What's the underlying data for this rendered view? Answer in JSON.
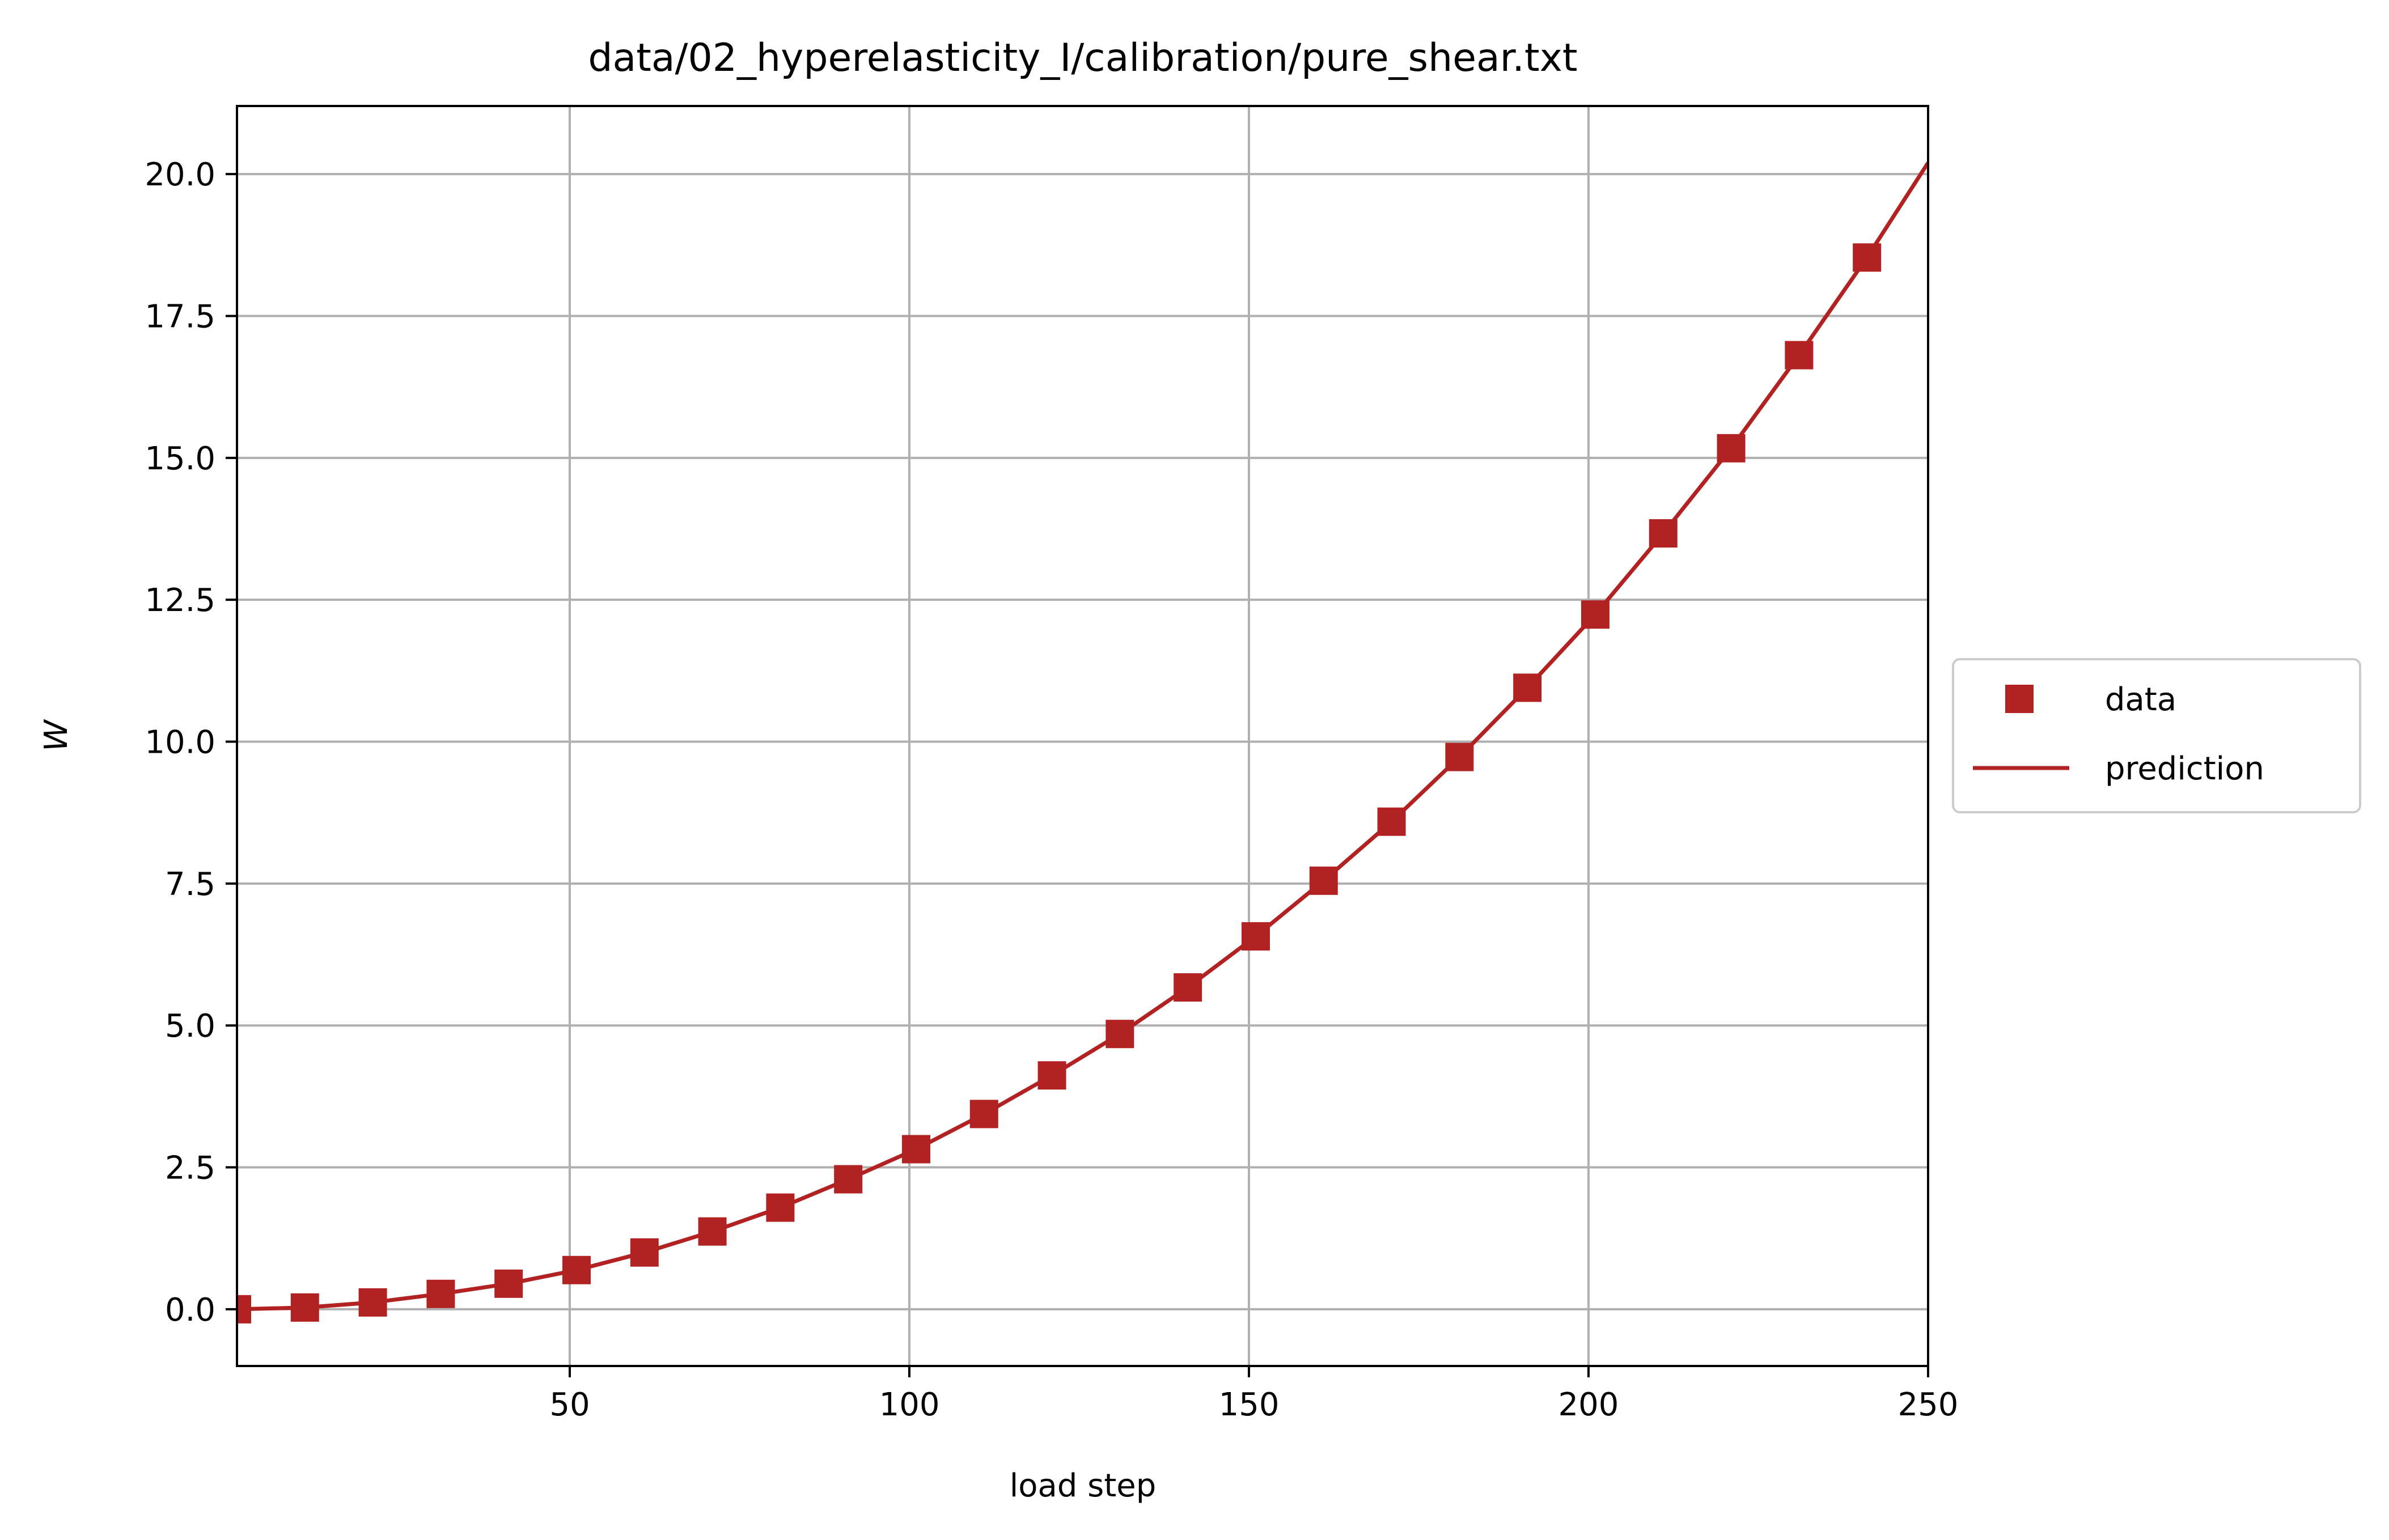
{
  "chart_data": {
    "type": "line",
    "title": "data/02_hyperelasticity_I/calibration/pure_shear.txt",
    "xlabel": "load step",
    "ylabel": "W",
    "xlim": [
      1,
      250
    ],
    "ylim": [
      -1.0,
      21.2
    ],
    "xticks": [
      50,
      100,
      150,
      200,
      250
    ],
    "xtick_labels": [
      "50",
      "100",
      "150",
      "200",
      "250"
    ],
    "yticks": [
      0.0,
      2.5,
      5.0,
      7.5,
      10.0,
      12.5,
      15.0,
      17.5,
      20.0
    ],
    "ytick_labels": [
      "0.0",
      "2.5",
      "5.0",
      "7.5",
      "10.0",
      "12.5",
      "15.0",
      "17.5",
      "20.0"
    ],
    "grid": true,
    "legend_placement": "center-right-outside",
    "series": [
      {
        "name": "data",
        "style": "square-markers",
        "color": "#b22222",
        "x": [
          1,
          11,
          21,
          31,
          41,
          51,
          61,
          71,
          81,
          91,
          101,
          111,
          121,
          131,
          141,
          151,
          161,
          171,
          181,
          191,
          201,
          211,
          221,
          231,
          241
        ],
        "y": [
          0.0,
          0.03,
          0.12,
          0.27,
          0.45,
          0.69,
          1.0,
          1.37,
          1.79,
          2.29,
          2.82,
          3.44,
          4.12,
          4.85,
          5.67,
          6.57,
          7.55,
          8.59,
          9.73,
          10.95,
          12.24,
          13.67,
          15.17,
          16.81,
          18.53
        ]
      },
      {
        "name": "prediction",
        "style": "line",
        "color": "#b22222",
        "x": [
          1,
          11,
          21,
          31,
          41,
          51,
          61,
          71,
          81,
          91,
          101,
          111,
          121,
          131,
          141,
          151,
          161,
          171,
          181,
          191,
          201,
          211,
          221,
          231,
          241,
          250
        ],
        "y": [
          0.0,
          0.03,
          0.12,
          0.27,
          0.45,
          0.69,
          1.0,
          1.37,
          1.79,
          2.29,
          2.82,
          3.44,
          4.12,
          4.85,
          5.67,
          6.57,
          7.55,
          8.59,
          9.73,
          10.95,
          12.24,
          13.67,
          15.17,
          16.81,
          18.53,
          20.2
        ]
      }
    ]
  }
}
